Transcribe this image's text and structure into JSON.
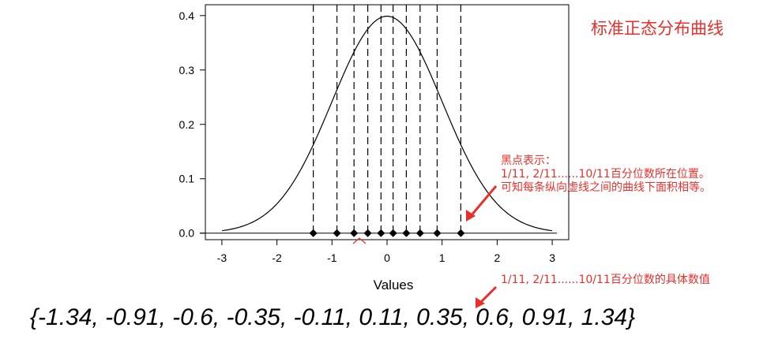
{
  "chart_data": {
    "type": "line",
    "series": [
      {
        "name": "standard-normal-density",
        "function": "normal_pdf",
        "mean": 0,
        "sd": 1,
        "x_range": [
          -3,
          3
        ]
      }
    ],
    "quantiles": {
      "name": "quantile-points",
      "x": [
        -1.34,
        -0.91,
        -0.6,
        -0.35,
        -0.11,
        0.11,
        0.35,
        0.6,
        0.91,
        1.34
      ],
      "y": 0
    },
    "xlabel": "Values",
    "ylabel": "",
    "xlim": [
      -3.3,
      3.3
    ],
    "ylim": [
      -0.012,
      0.42
    ],
    "x_ticks": [
      -3,
      -2,
      -1,
      0,
      1,
      2,
      3
    ],
    "x_tick_labels": [
      "-3",
      "-2",
      "-1",
      "0",
      "1",
      "2",
      "3"
    ],
    "y_ticks": [
      0,
      0.1,
      0.2,
      0.3,
      0.4
    ],
    "y_tick_labels": [
      "0.0",
      "0.1",
      "0.2",
      "0.3",
      "0.4"
    ],
    "grid": false,
    "legend": "none"
  },
  "annotations": {
    "title": "标准正态分布曲线",
    "note_lines": [
      "黑点表示：",
      "1/11, 2/11......10/11百分位数所在位置。",
      "可知每条纵向虚线之间的曲线下面积相等。"
    ],
    "quantile_note": "1/11, 2/11......10/11百分位数的具体数值",
    "quantile_values_text": "{-1.34, -0.91, -0.6, -0.35, -0.11, 0.11, 0.35, 0.6, 0.91, 1.34}"
  },
  "colors": {
    "annotation": "#e8302b",
    "line": "#000000",
    "background": "#ffffff"
  }
}
